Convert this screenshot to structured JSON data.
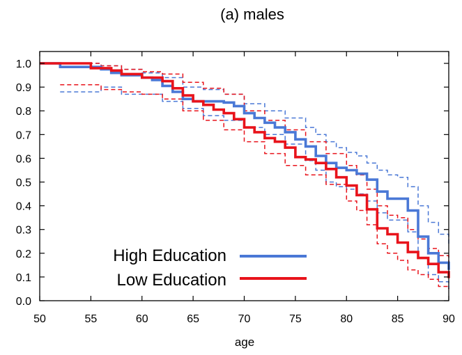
{
  "chart_data": {
    "type": "line",
    "title": "(a) males",
    "xlabel": "age",
    "ylabel": "",
    "xlim": [
      50,
      90
    ],
    "ylim": [
      0.0,
      1.05
    ],
    "xticks": [
      "50",
      "55",
      "60",
      "65",
      "70",
      "75",
      "80",
      "85",
      "90"
    ],
    "yticks": [
      "0.0",
      "0.1",
      "0.2",
      "0.3",
      "0.4",
      "0.5",
      "0.6",
      "0.7",
      "0.8",
      "0.9",
      "1.0"
    ],
    "legend_position": "bottom-left",
    "series": [
      {
        "name": "High Education",
        "color": "#4a78d6",
        "style": "solid",
        "points": [
          [
            50,
            1.0
          ],
          [
            52,
            0.985
          ],
          [
            56,
            0.975
          ],
          [
            57,
            0.96
          ],
          [
            58,
            0.95
          ],
          [
            60,
            0.94
          ],
          [
            61,
            0.93
          ],
          [
            62,
            0.905
          ],
          [
            63,
            0.88
          ],
          [
            64,
            0.85
          ],
          [
            65,
            0.84
          ],
          [
            66,
            0.84
          ],
          [
            68,
            0.835
          ],
          [
            69,
            0.82
          ],
          [
            70,
            0.79
          ],
          [
            71,
            0.77
          ],
          [
            72,
            0.75
          ],
          [
            73,
            0.73
          ],
          [
            74,
            0.71
          ],
          [
            75,
            0.68
          ],
          [
            76,
            0.65
          ],
          [
            77,
            0.61
          ],
          [
            78,
            0.58
          ],
          [
            79,
            0.56
          ],
          [
            80,
            0.55
          ],
          [
            81,
            0.535
          ],
          [
            82,
            0.51
          ],
          [
            83,
            0.46
          ],
          [
            84,
            0.43
          ],
          [
            85,
            0.43
          ],
          [
            86,
            0.38
          ],
          [
            87,
            0.27
          ],
          [
            88,
            0.2
          ],
          [
            89,
            0.16
          ],
          [
            90,
            0.13
          ]
        ]
      },
      {
        "name": "High Education CI upper",
        "color": "#4a78d6",
        "style": "dashed",
        "points": [
          [
            50,
            1.0
          ],
          [
            52,
            1.0
          ],
          [
            56,
            0.99
          ],
          [
            58,
            0.975
          ],
          [
            60,
            0.96
          ],
          [
            62,
            0.94
          ],
          [
            64,
            0.9
          ],
          [
            66,
            0.89
          ],
          [
            68,
            0.87
          ],
          [
            70,
            0.83
          ],
          [
            72,
            0.8
          ],
          [
            74,
            0.77
          ],
          [
            76,
            0.73
          ],
          [
            77,
            0.7
          ],
          [
            78,
            0.67
          ],
          [
            79,
            0.645
          ],
          [
            80,
            0.625
          ],
          [
            81,
            0.61
          ],
          [
            82,
            0.58
          ],
          [
            83,
            0.55
          ],
          [
            84,
            0.53
          ],
          [
            85,
            0.52
          ],
          [
            86,
            0.48
          ],
          [
            87,
            0.4
          ],
          [
            88,
            0.33
          ],
          [
            89,
            0.28
          ],
          [
            90,
            0.24
          ]
        ]
      },
      {
        "name": "High Education CI lower",
        "color": "#4a78d6",
        "style": "dashed",
        "points": [
          [
            52,
            0.88
          ],
          [
            56,
            0.9
          ],
          [
            58,
            0.87
          ],
          [
            60,
            0.87
          ],
          [
            62,
            0.84
          ],
          [
            64,
            0.81
          ],
          [
            66,
            0.78
          ],
          [
            68,
            0.76
          ],
          [
            70,
            0.73
          ],
          [
            72,
            0.7
          ],
          [
            74,
            0.66
          ],
          [
            76,
            0.59
          ],
          [
            77,
            0.55
          ],
          [
            78,
            0.5
          ],
          [
            79,
            0.48
          ],
          [
            80,
            0.47
          ],
          [
            81,
            0.45
          ],
          [
            82,
            0.42
          ],
          [
            83,
            0.37
          ],
          [
            84,
            0.34
          ],
          [
            85,
            0.34
          ],
          [
            86,
            0.29
          ],
          [
            87,
            0.18
          ],
          [
            88,
            0.11
          ],
          [
            89,
            0.08
          ],
          [
            90,
            0.05
          ]
        ]
      },
      {
        "name": "Low Education",
        "color": "#e8131b",
        "style": "solid",
        "points": [
          [
            50,
            1.0
          ],
          [
            55,
            0.98
          ],
          [
            57,
            0.97
          ],
          [
            58,
            0.955
          ],
          [
            60,
            0.94
          ],
          [
            62,
            0.925
          ],
          [
            63,
            0.895
          ],
          [
            64,
            0.865
          ],
          [
            65,
            0.84
          ],
          [
            66,
            0.825
          ],
          [
            67,
            0.805
          ],
          [
            68,
            0.79
          ],
          [
            69,
            0.765
          ],
          [
            70,
            0.73
          ],
          [
            71,
            0.71
          ],
          [
            72,
            0.685
          ],
          [
            73,
            0.67
          ],
          [
            74,
            0.645
          ],
          [
            75,
            0.605
          ],
          [
            76,
            0.595
          ],
          [
            77,
            0.58
          ],
          [
            78,
            0.555
          ],
          [
            79,
            0.52
          ],
          [
            80,
            0.485
          ],
          [
            81,
            0.445
          ],
          [
            82,
            0.385
          ],
          [
            83,
            0.305
          ],
          [
            84,
            0.28
          ],
          [
            85,
            0.245
          ],
          [
            86,
            0.205
          ],
          [
            87,
            0.18
          ],
          [
            88,
            0.155
          ],
          [
            89,
            0.12
          ],
          [
            90,
            0.095
          ]
        ]
      },
      {
        "name": "Low Education CI upper",
        "color": "#e8131b",
        "style": "dashed",
        "points": [
          [
            50,
            1.0
          ],
          [
            54,
            1.0
          ],
          [
            56,
            0.99
          ],
          [
            58,
            0.975
          ],
          [
            60,
            0.965
          ],
          [
            62,
            0.955
          ],
          [
            64,
            0.92
          ],
          [
            66,
            0.895
          ],
          [
            68,
            0.87
          ],
          [
            70,
            0.8
          ],
          [
            72,
            0.76
          ],
          [
            74,
            0.72
          ],
          [
            76,
            0.67
          ],
          [
            78,
            0.62
          ],
          [
            80,
            0.57
          ],
          [
            81,
            0.53
          ],
          [
            82,
            0.47
          ],
          [
            83,
            0.4
          ],
          [
            84,
            0.36
          ],
          [
            85,
            0.35
          ],
          [
            86,
            0.3
          ],
          [
            87,
            0.26
          ],
          [
            88,
            0.22
          ],
          [
            89,
            0.19
          ],
          [
            90,
            0.16
          ]
        ]
      },
      {
        "name": "Low Education CI lower",
        "color": "#e8131b",
        "style": "dashed",
        "points": [
          [
            52,
            0.91
          ],
          [
            54,
            0.91
          ],
          [
            56,
            0.89
          ],
          [
            58,
            0.88
          ],
          [
            60,
            0.87
          ],
          [
            62,
            0.85
          ],
          [
            64,
            0.8
          ],
          [
            66,
            0.76
          ],
          [
            68,
            0.72
          ],
          [
            70,
            0.67
          ],
          [
            72,
            0.62
          ],
          [
            74,
            0.57
          ],
          [
            76,
            0.53
          ],
          [
            78,
            0.49
          ],
          [
            80,
            0.42
          ],
          [
            81,
            0.38
          ],
          [
            82,
            0.32
          ],
          [
            83,
            0.24
          ],
          [
            84,
            0.2
          ],
          [
            85,
            0.17
          ],
          [
            86,
            0.13
          ],
          [
            87,
            0.11
          ],
          [
            88,
            0.09
          ],
          [
            89,
            0.06
          ],
          [
            90,
            0.05
          ]
        ]
      }
    ],
    "legend": [
      {
        "label": "High Education",
        "color": "#4a78d6"
      },
      {
        "label": "Low Education",
        "color": "#e8131b"
      }
    ]
  }
}
